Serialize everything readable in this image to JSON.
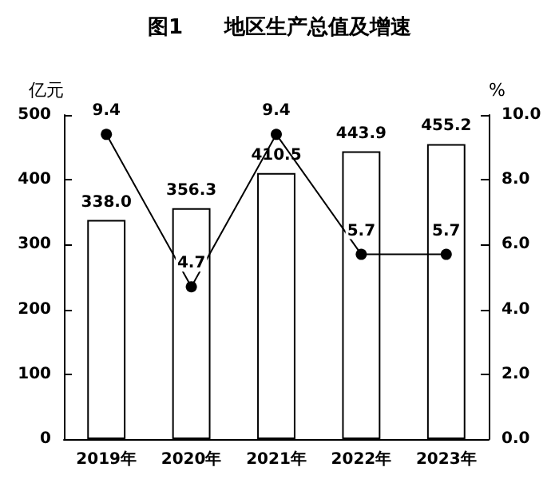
{
  "chart_data": {
    "type": "bar",
    "title": "图1　　地区生产总值及增速",
    "ylabel": "亿元",
    "y2label": "%",
    "categories": [
      "2019年",
      "2020年",
      "2021年",
      "2022年",
      "2023年"
    ],
    "series": [
      {
        "color": "#ffffff",
        "values": [
          338.0,
          356.3,
          410.5,
          443.9,
          455.2
        ],
        "value_labels": [
          "338.0",
          "356.3",
          "410.5",
          "443.9",
          "455.2"
        ]
      },
      {
        "type": "line",
        "axis": "y2",
        "color": "#000000",
        "marker": "circle",
        "values": [
          9.4,
          4.7,
          9.4,
          5.7,
          5.7
        ],
        "value_labels": [
          "9.4",
          "4.7",
          "9.4",
          "5.7",
          "5.7"
        ]
      }
    ],
    "ylim": [
      0,
      500
    ],
    "yticks": [
      0,
      100,
      200,
      300,
      400,
      500
    ],
    "y2lim": [
      0,
      10
    ],
    "y2ticks": [
      {
        "value": 0,
        "label": "0.0"
      },
      {
        "value": 2,
        "label": "2.0"
      },
      {
        "value": 4,
        "label": "4.0"
      },
      {
        "value": 6,
        "label": "6.0"
      },
      {
        "value": 8,
        "label": "8.0"
      },
      {
        "value": 10,
        "label": "10.0"
      }
    ],
    "grid": false
  }
}
